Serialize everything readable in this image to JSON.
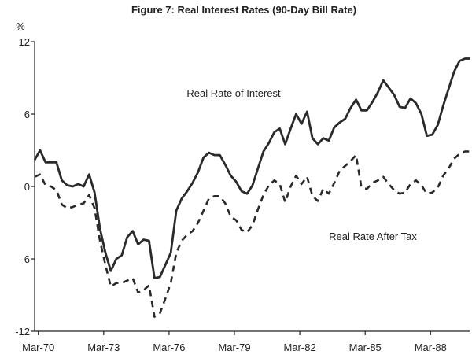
{
  "chart_data": {
    "type": "line",
    "title": "Figure 7: Real Interest Rates (90-Day Bill Rate)",
    "ylabel": "%",
    "xlabel": "",
    "ylim": [
      -12,
      12
    ],
    "xlim": [
      1970.0,
      1990.0
    ],
    "y_ticks": [
      12,
      6,
      0,
      -6,
      -12
    ],
    "y_tick_labels": [
      "12",
      "6",
      "0",
      "-6",
      "-12"
    ],
    "x_tick_labels": [
      {
        "label": "Mar-70",
        "x": 1970.17
      },
      {
        "label": "Mar-73",
        "x": 1973.17
      },
      {
        "label": "Mar-76",
        "x": 1976.17
      },
      {
        "label": "Mar-79",
        "x": 1979.17
      },
      {
        "label": "Mar-82",
        "x": 1982.17
      },
      {
        "label": "Mar-85",
        "x": 1985.17
      },
      {
        "label": "Mar-88",
        "x": 1988.17
      }
    ],
    "grid": false,
    "series": [
      {
        "name": "Real Rate of Interest",
        "style": "solid",
        "color": "#2a2a2a",
        "x": [
          1970.0,
          1970.25,
          1970.5,
          1970.75,
          1971.0,
          1971.25,
          1971.5,
          1971.75,
          1972.0,
          1972.25,
          1972.5,
          1972.75,
          1973.0,
          1973.25,
          1973.5,
          1973.75,
          1974.0,
          1974.25,
          1974.5,
          1974.75,
          1975.0,
          1975.25,
          1975.5,
          1975.75,
          1976.0,
          1976.25,
          1976.5,
          1976.75,
          1977.0,
          1977.25,
          1977.5,
          1977.75,
          1978.0,
          1978.25,
          1978.5,
          1978.75,
          1979.0,
          1979.25,
          1979.5,
          1979.75,
          1980.0,
          1980.25,
          1980.5,
          1980.75,
          1981.0,
          1981.25,
          1981.5,
          1981.75,
          1982.0,
          1982.25,
          1982.5,
          1982.75,
          1983.0,
          1983.25,
          1983.5,
          1983.75,
          1984.0,
          1984.25,
          1984.5,
          1984.75,
          1985.0,
          1985.25,
          1985.5,
          1985.75,
          1986.0,
          1986.25,
          1986.5,
          1986.75,
          1987.0,
          1987.25,
          1987.5,
          1987.75,
          1988.0,
          1988.25,
          1988.5,
          1988.75,
          1989.0,
          1989.25,
          1989.5,
          1989.75,
          1990.0
        ],
        "values": [
          2.2,
          3.0,
          2.0,
          2.0,
          2.0,
          0.5,
          0.1,
          0.0,
          0.2,
          0.0,
          1.0,
          -0.5,
          -3.5,
          -5.5,
          -7.0,
          -6.0,
          -5.7,
          -4.2,
          -3.7,
          -4.8,
          -4.4,
          -4.5,
          -7.6,
          -7.5,
          -6.5,
          -5.5,
          -2.0,
          -1.0,
          -0.4,
          0.3,
          1.2,
          2.4,
          2.8,
          2.6,
          2.6,
          1.8,
          0.9,
          0.4,
          -0.4,
          -0.6,
          0.1,
          1.5,
          2.9,
          3.6,
          4.5,
          4.8,
          3.5,
          4.8,
          6.0,
          5.2,
          6.2,
          4.0,
          3.5,
          4.0,
          3.8,
          4.9,
          5.3,
          5.6,
          6.5,
          7.2,
          6.3,
          6.3,
          7.0,
          7.8,
          8.8,
          8.2,
          7.6,
          6.6,
          6.5,
          7.3,
          6.9,
          6.0,
          4.2,
          4.3,
          5.1,
          6.7,
          8.1,
          9.5,
          10.4,
          10.6,
          10.6
        ]
      },
      {
        "name": "Real Rate After Tax",
        "style": "dashed",
        "color": "#2a2a2a",
        "x": [
          1970.0,
          1970.25,
          1970.5,
          1970.75,
          1971.0,
          1971.25,
          1971.5,
          1971.75,
          1972.0,
          1972.25,
          1972.5,
          1972.75,
          1973.0,
          1973.25,
          1973.5,
          1973.75,
          1974.0,
          1974.25,
          1974.5,
          1974.75,
          1975.0,
          1975.25,
          1975.5,
          1975.75,
          1976.0,
          1976.25,
          1976.5,
          1976.75,
          1977.0,
          1977.25,
          1977.5,
          1977.75,
          1978.0,
          1978.25,
          1978.5,
          1978.75,
          1979.0,
          1979.25,
          1979.5,
          1979.75,
          1980.0,
          1980.25,
          1980.5,
          1980.75,
          1981.0,
          1981.25,
          1981.5,
          1981.75,
          1982.0,
          1982.25,
          1982.5,
          1982.75,
          1983.0,
          1983.25,
          1983.5,
          1983.75,
          1984.0,
          1984.25,
          1984.5,
          1984.75,
          1985.0,
          1985.25,
          1985.5,
          1985.75,
          1986.0,
          1986.25,
          1986.5,
          1986.75,
          1987.0,
          1987.25,
          1987.5,
          1987.75,
          1988.0,
          1988.25,
          1988.5,
          1988.75,
          1989.0,
          1989.25,
          1989.5,
          1989.75,
          1990.0
        ],
        "values": [
          0.8,
          1.0,
          0.1,
          0.0,
          -0.3,
          -1.5,
          -1.8,
          -1.7,
          -1.5,
          -1.4,
          -0.7,
          -1.8,
          -4.5,
          -6.5,
          -8.3,
          -8.0,
          -8.0,
          -7.8,
          -7.6,
          -8.8,
          -8.6,
          -8.2,
          -10.8,
          -10.5,
          -9.3,
          -8.0,
          -5.5,
          -4.5,
          -4.0,
          -3.7,
          -3.0,
          -2.0,
          -1.0,
          -0.8,
          -0.8,
          -1.4,
          -2.5,
          -2.8,
          -3.6,
          -3.8,
          -3.2,
          -1.9,
          -0.7,
          0.1,
          0.5,
          0.2,
          -1.3,
          0.0,
          0.9,
          0.2,
          0.8,
          -0.8,
          -1.2,
          -0.2,
          -0.6,
          0.3,
          1.3,
          1.7,
          2.1,
          2.6,
          -0.1,
          -0.2,
          0.3,
          0.5,
          0.8,
          0.2,
          -0.3,
          -0.6,
          -0.5,
          0.2,
          0.5,
          0.1,
          -0.6,
          -0.5,
          -0.1,
          0.9,
          1.5,
          2.3,
          2.7,
          2.9,
          2.9
        ]
      }
    ],
    "annotations": [
      {
        "text": "Real Rate of Interest",
        "series": "Real Rate of Interest"
      },
      {
        "text": "Real Rate After Tax",
        "series": "Real Rate After Tax"
      }
    ]
  }
}
